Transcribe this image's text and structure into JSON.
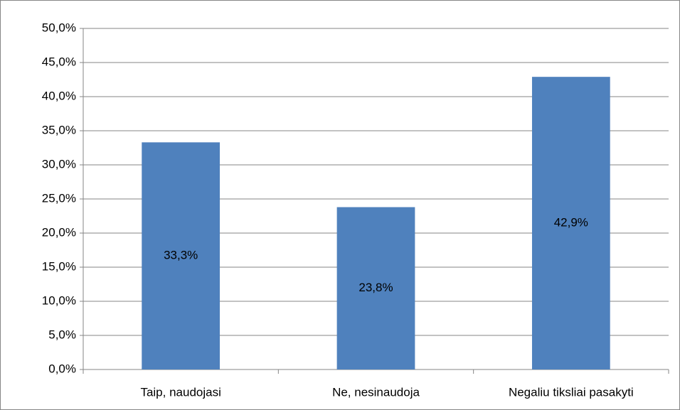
{
  "chart_data": {
    "type": "bar",
    "categories": [
      "Taip, naudojasi",
      "Ne, nesinaudoja",
      "Negaliu tiksliai pasakyti"
    ],
    "values": [
      33.3,
      23.8,
      42.9
    ],
    "value_labels": [
      "33,3%",
      "23,8%",
      "42,9%"
    ],
    "color": "#4f81bd",
    "ylim": [
      0,
      50
    ],
    "yticks": [
      {
        "value": 0,
        "label": "0,0%"
      },
      {
        "value": 5,
        "label": "5,0%"
      },
      {
        "value": 10,
        "label": "10,0%"
      },
      {
        "value": 15,
        "label": "15,0%"
      },
      {
        "value": 20,
        "label": "20,0%"
      },
      {
        "value": 25,
        "label": "25,0%"
      },
      {
        "value": 30,
        "label": "30,0%"
      },
      {
        "value": 35,
        "label": "35,0%"
      },
      {
        "value": 40,
        "label": "40,0%"
      },
      {
        "value": 45,
        "label": "45,0%"
      },
      {
        "value": 50,
        "label": "50,0%"
      }
    ],
    "grid": true
  }
}
